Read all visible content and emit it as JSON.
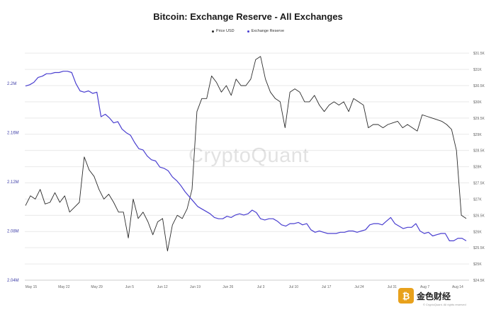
{
  "title": "Bitcoin: Exchange Reserve - All Exchanges",
  "watermark": "CryptoQuant",
  "footer": {
    "brand": "CryptoQuant",
    "brand_logo_text": "金色财经",
    "note": "© CryptoQuant. All rights reserved"
  },
  "colors": {
    "price": "#2b2b2b",
    "reserve": "#4a3fd0",
    "grid": "#e9e9e9",
    "left_axis_text": "#3f3fa8",
    "axis_text": "#666666"
  },
  "chart_data": {
    "type": "line",
    "title": "Bitcoin: Exchange Reserve - All Exchanges",
    "legend_position": "top-center",
    "grid": true,
    "x_tick_labels": [
      "May 15",
      "May 22",
      "May 29",
      "Jun 5",
      "Jun 12",
      "Jun 19",
      "Jun 26",
      "Jul 3",
      "Jul 10",
      "Jul 17",
      "Jul 24",
      "Jul 31",
      "Aug 7",
      "Aug 14"
    ],
    "left_axis": {
      "name": "Exchange Reserve",
      "ylim": [
        2040000,
        2230000
      ],
      "tick_labels": [
        "2.04M",
        "2.08M",
        "2.12M",
        "2.16M",
        "2.2M"
      ],
      "tick_values": [
        2040000,
        2080000,
        2120000,
        2160000,
        2200000
      ]
    },
    "right_axis": {
      "name": "Price USD",
      "ylim": [
        24500,
        31700
      ],
      "tick_labels": [
        "$24.5K",
        "$25K",
        "$25.5K",
        "$26K",
        "$26.5K",
        "$27K",
        "$27.5K",
        "$28K",
        "$28.5K",
        "$29K",
        "$29.5K",
        "$30K",
        "$30.5K",
        "$31K",
        "$31.5K"
      ],
      "tick_values": [
        24500,
        25000,
        25500,
        26000,
        26500,
        27000,
        27500,
        28000,
        28500,
        29000,
        29500,
        30000,
        30500,
        31000,
        31500
      ]
    },
    "series": [
      {
        "name": "Price USD",
        "axis": "right",
        "values": [
          26800,
          27100,
          27000,
          27300,
          26850,
          26900,
          27200,
          26900,
          27100,
          26600,
          26750,
          26900,
          28300,
          27900,
          27700,
          27300,
          27000,
          27150,
          26900,
          26600,
          26600,
          25800,
          27000,
          26400,
          26600,
          26300,
          25900,
          26300,
          26400,
          25400,
          26200,
          26500,
          26400,
          26700,
          27300,
          29700,
          30100,
          30100,
          30800,
          30600,
          30300,
          30500,
          30200,
          30700,
          30500,
          30500,
          30700,
          31300,
          31400,
          30700,
          30300,
          30100,
          30000,
          29200,
          30300,
          30400,
          30300,
          30000,
          30000,
          30200,
          29900,
          29700,
          29900,
          30000,
          29900,
          30000,
          29700,
          30100,
          30000,
          29900,
          29200,
          29300,
          29300,
          29200,
          29300,
          29350,
          29400,
          29200,
          29300,
          29200,
          29100,
          29600,
          29550,
          29500,
          29450,
          29400,
          29300,
          29150,
          28500,
          26500,
          26400
        ]
      },
      {
        "name": "Exchange Reserve",
        "axis": "left",
        "values": [
          2198000,
          2199000,
          2201000,
          2205000,
          2206000,
          2208000,
          2208000,
          2209000,
          2209000,
          2210000,
          2210000,
          2209000,
          2200000,
          2194000,
          2193000,
          2194000,
          2192000,
          2193000,
          2173000,
          2175000,
          2172000,
          2168000,
          2169000,
          2163000,
          2160000,
          2158000,
          2152000,
          2147000,
          2146000,
          2141000,
          2138000,
          2137000,
          2132000,
          2131000,
          2129000,
          2124000,
          2121000,
          2117000,
          2112000,
          2108000,
          2104000,
          2100000,
          2098000,
          2096000,
          2094000,
          2091000,
          2090000,
          2090000,
          2092000,
          2091000,
          2093000,
          2094000,
          2093000,
          2094000,
          2097000,
          2095000,
          2090000,
          2089000,
          2090000,
          2090000,
          2088000,
          2085000,
          2084000,
          2086000,
          2086000,
          2087000,
          2085000,
          2086000,
          2081000,
          2079000,
          2080000,
          2079000,
          2078000,
          2078000,
          2078000,
          2079000,
          2079000,
          2080000,
          2080000,
          2079000,
          2080000,
          2081000,
          2085000,
          2086000,
          2086000,
          2085000,
          2088000,
          2091000,
          2086000,
          2084000,
          2082000,
          2083000,
          2083000,
          2086000,
          2080000,
          2078000,
          2079000,
          2076000,
          2077000,
          2078000,
          2078000,
          2072000,
          2072000,
          2074000,
          2074000,
          2072000
        ]
      }
    ]
  }
}
